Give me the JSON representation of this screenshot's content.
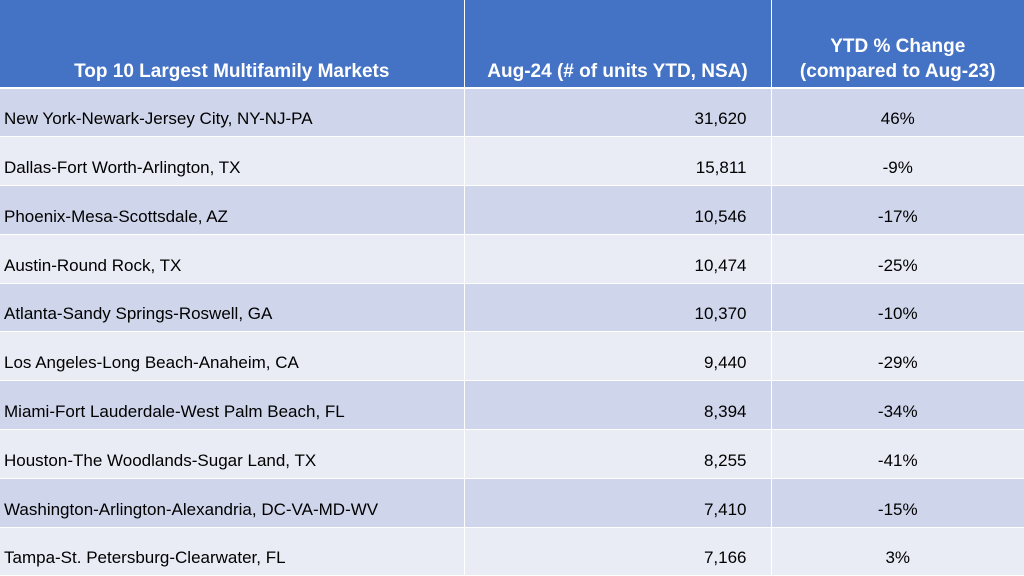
{
  "chart_data": {
    "type": "table",
    "columns": [
      "Top 10 Largest Multifamily Markets",
      "Aug-24 (# of units YTD, NSA)",
      [
        "YTD % Change",
        "(compared to Aug-23)"
      ]
    ],
    "rows": [
      {
        "market": "New York-Newark-Jersey City, NY-NJ-PA",
        "units": "31,620",
        "change": "46%"
      },
      {
        "market": "Dallas-Fort Worth-Arlington, TX",
        "units": "15,811",
        "change": "-9%"
      },
      {
        "market": "Phoenix-Mesa-Scottsdale, AZ",
        "units": "10,546",
        "change": "-17%"
      },
      {
        "market": "Austin-Round Rock, TX",
        "units": "10,474",
        "change": "-25%"
      },
      {
        "market": "Atlanta-Sandy Springs-Roswell, GA",
        "units": "10,370",
        "change": "-10%"
      },
      {
        "market": "Los Angeles-Long Beach-Anaheim, CA",
        "units": "9,440",
        "change": "-29%"
      },
      {
        "market": "Miami-Fort Lauderdale-West Palm Beach, FL",
        "units": "8,394",
        "change": "-34%"
      },
      {
        "market": "Houston-The Woodlands-Sugar Land, TX",
        "units": "8,255",
        "change": "-41%"
      },
      {
        "market": "Washington-Arlington-Alexandria, DC-VA-MD-WV",
        "units": "7,410",
        "change": "-15%"
      },
      {
        "market": "Tampa-St. Petersburg-Clearwater, FL",
        "units": "7,166",
        "change": "3%"
      }
    ],
    "colors": {
      "header_bg": "#4472c4",
      "header_text": "#ffffff",
      "row_odd": "#cfd5ea",
      "row_even": "#e9ebf5"
    }
  }
}
